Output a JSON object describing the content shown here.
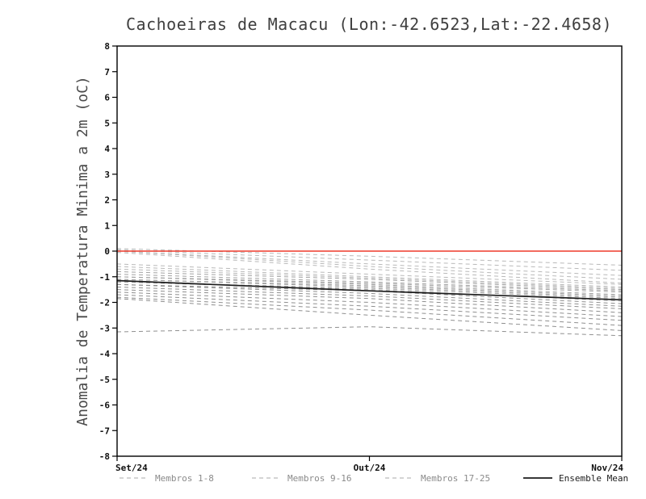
{
  "chart_data": {
    "type": "line",
    "title": "Cachoeiras de Macacu (Lon:-42.6523,Lat:-22.4658)",
    "ylabel": "Anomalia de Temperatura Minima a 2m (oC)",
    "xlabel": "",
    "x_tick_labels": [
      "Set/24",
      "Out/24",
      "Nov/24"
    ],
    "ylim": [
      -8,
      8
    ],
    "y_tick_step": 1,
    "grid": false,
    "legend_position": "bottom",
    "zero_line": {
      "value": 0,
      "color": "#ef3a2c"
    },
    "member_groups": [
      {
        "name": "Membros 1-8",
        "color": "#b9b9b9",
        "first_index": 0,
        "last_index": 7
      },
      {
        "name": "Membros 9-16",
        "color": "#a3a3a3",
        "first_index": 8,
        "last_index": 15
      },
      {
        "name": "Membros 17-25",
        "color": "#8f8f8f",
        "first_index": 16,
        "last_index": 24
      }
    ],
    "members": [
      [
        0.1,
        -0.2,
        -0.55
      ],
      [
        0.05,
        -0.35,
        -0.75
      ],
      [
        0.0,
        -0.5,
        -0.95
      ],
      [
        0.0,
        -0.6,
        -1.1
      ],
      [
        -0.05,
        -0.7,
        -1.25
      ],
      [
        -0.5,
        -0.9,
        -1.3
      ],
      [
        -0.6,
        -1.0,
        -1.4
      ],
      [
        -0.7,
        -1.05,
        -1.45
      ],
      [
        -0.8,
        -1.1,
        -1.5
      ],
      [
        -0.9,
        -1.2,
        -1.55
      ],
      [
        -1.0,
        -1.25,
        -1.6
      ],
      [
        -1.0,
        -1.3,
        -1.7
      ],
      [
        -1.1,
        -1.35,
        -1.75
      ],
      [
        -1.1,
        -1.4,
        -1.8
      ],
      [
        -1.2,
        -1.45,
        -1.85
      ],
      [
        -1.2,
        -1.5,
        -1.95
      ],
      [
        -1.3,
        -1.55,
        -2.05
      ],
      [
        -1.3,
        -1.65,
        -2.15
      ],
      [
        -1.4,
        -1.75,
        -2.25
      ],
      [
        -1.5,
        -1.85,
        -2.4
      ],
      [
        -1.6,
        -2.0,
        -2.55
      ],
      [
        -1.7,
        -2.15,
        -2.7
      ],
      [
        -1.8,
        -2.3,
        -2.9
      ],
      [
        -1.85,
        -2.5,
        -3.1
      ],
      [
        -3.15,
        -2.95,
        -3.3
      ]
    ],
    "ensemble_mean": {
      "name": "Ensemble Mean",
      "color": "#1c1c1c",
      "values": [
        -1.15,
        -1.55,
        -1.9
      ]
    },
    "legend": [
      {
        "label": "Membros 1-8",
        "style": "dashed",
        "line_color": "#a8a8a8",
        "text_color": "#8a8a8a"
      },
      {
        "label": "Membros 9-16",
        "style": "dashed",
        "line_color": "#a8a8a8",
        "text_color": "#8a8a8a"
      },
      {
        "label": "Membros 17-25",
        "style": "dashed",
        "line_color": "#a8a8a8",
        "text_color": "#8a8a8a"
      },
      {
        "label": "Ensemble Mean",
        "style": "solid",
        "line_color": "#1c1c1c",
        "text_color": "#1c1c1c"
      }
    ]
  }
}
